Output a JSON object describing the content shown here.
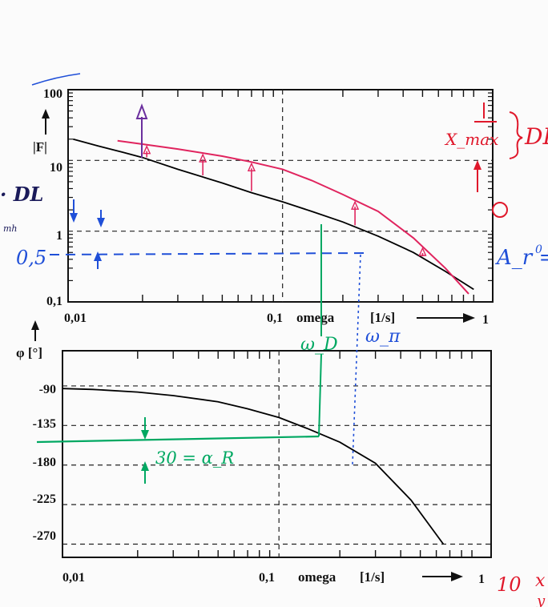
{
  "chart_data": [
    {
      "type": "line",
      "scale": {
        "x": "log",
        "y": "log"
      },
      "ylabel": "|F|",
      "xlabel": "omega",
      "xunit": "[1/s]",
      "x_ticks": [
        "0,01",
        "0,1",
        "1"
      ],
      "y_ticks": [
        "100",
        "10",
        "1",
        "0,1"
      ],
      "xlim": [
        0.0085,
        1.12
      ],
      "ylim": [
        0.1,
        100
      ],
      "grid": true,
      "series": [
        {
          "role": "printed",
          "color": "#000000",
          "x": [
            0.009,
            0.012,
            0.016,
            0.02,
            0.03,
            0.05,
            0.07,
            0.1,
            0.14,
            0.2,
            0.3,
            0.45,
            0.65,
            0.9
          ],
          "y": [
            20,
            16,
            13,
            11,
            7.5,
            4.8,
            3.5,
            2.6,
            1.9,
            1.35,
            0.85,
            0.5,
            0.27,
            0.15
          ]
        },
        {
          "role": "handwritten",
          "color": "#e0245e",
          "x": [
            0.015,
            0.02,
            0.03,
            0.05,
            0.07,
            0.1,
            0.14,
            0.2,
            0.3,
            0.45,
            0.65,
            0.85
          ],
          "y": [
            19,
            17,
            14.5,
            11.5,
            9.5,
            7.5,
            5.2,
            3.3,
            1.9,
            0.8,
            0.3,
            0.13
          ]
        }
      ]
    },
    {
      "type": "line",
      "scale": {
        "x": "log",
        "y": "linear"
      },
      "ylabel": "φ [°]",
      "xlabel": "omega",
      "xunit": "[1/s]",
      "x_ticks": [
        "0,01",
        "0,1",
        "1"
      ],
      "y_ticks": [
        "-90",
        "-135",
        "-180",
        "-225",
        "-270"
      ],
      "xlim": [
        0.0085,
        1.12
      ],
      "ylim": [
        -285,
        -50
      ],
      "grid": true,
      "series": [
        {
          "role": "printed",
          "color": "#000000",
          "x": [
            0.0085,
            0.012,
            0.02,
            0.03,
            0.05,
            0.07,
            0.1,
            0.14,
            0.2,
            0.3,
            0.45,
            0.65
          ],
          "y": [
            -93,
            -94,
            -97,
            -101,
            -108,
            -116,
            -126,
            -139,
            -154,
            -178,
            -220,
            -270
          ]
        }
      ]
    }
  ],
  "annotations": {
    "dl": "DL",
    "dl_left": "· DL",
    "x_max": "X_max",
    "half": "0,5",
    "a_r": "A_r =",
    "a_r_val": "0",
    "omega_d": "ω_D",
    "omega_pi": "ω_π",
    "alpha_r": "30 = α_R",
    "ten": "10",
    "mark_r": "x",
    "mark_r2": "y",
    "tiny_left": "mh",
    "tiny_circle": "o"
  },
  "colors": {
    "pink": "#e0245e",
    "red": "#e0182b",
    "green": "#00a862",
    "blue": "#1f4fd8",
    "violet": "#6b2f9e"
  }
}
